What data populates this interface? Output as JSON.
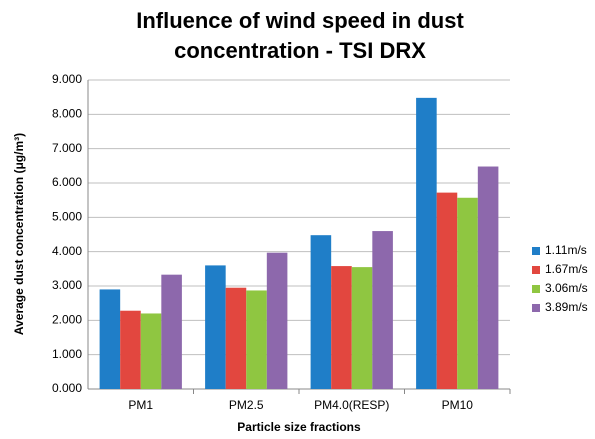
{
  "chart_data": {
    "type": "bar",
    "title": [
      "Influence of wind speed in dust",
      "concentration -  TSI DRX"
    ],
    "x_label": "Particle size fractions",
    "y_label": "Average dust concentration (μg/m³)",
    "categories": [
      "PM1",
      "PM2.5",
      "PM4.0(RESP)",
      "PM10"
    ],
    "series": [
      {
        "name": "1.11m/s",
        "color": "#1f7ec8",
        "values": [
          2.9,
          3.6,
          4.48,
          8.48
        ]
      },
      {
        "name": "1.67m/s",
        "color": "#e2473f",
        "values": [
          2.28,
          2.95,
          3.58,
          5.72
        ]
      },
      {
        "name": "3.06m/s",
        "color": "#8fc641",
        "values": [
          2.2,
          2.87,
          3.55,
          5.57
        ]
      },
      {
        "name": "3.89m/s",
        "color": "#8d68ac",
        "values": [
          3.33,
          3.97,
          4.6,
          6.48
        ]
      }
    ],
    "ylim": [
      0,
      9
    ],
    "yticks": [
      {
        "value": 0,
        "label": "0.000"
      },
      {
        "value": 1,
        "label": "1.000"
      },
      {
        "value": 2,
        "label": "2.000"
      },
      {
        "value": 3,
        "label": "3.000"
      },
      {
        "value": 4,
        "label": "4.000"
      },
      {
        "value": 5,
        "label": "5.000"
      },
      {
        "value": 6,
        "label": "6.000"
      },
      {
        "value": 7,
        "label": "7.000"
      },
      {
        "value": 8,
        "label": "8.000"
      },
      {
        "value": 9,
        "label": "9.000"
      }
    ],
    "grid": true,
    "legend": "right"
  }
}
